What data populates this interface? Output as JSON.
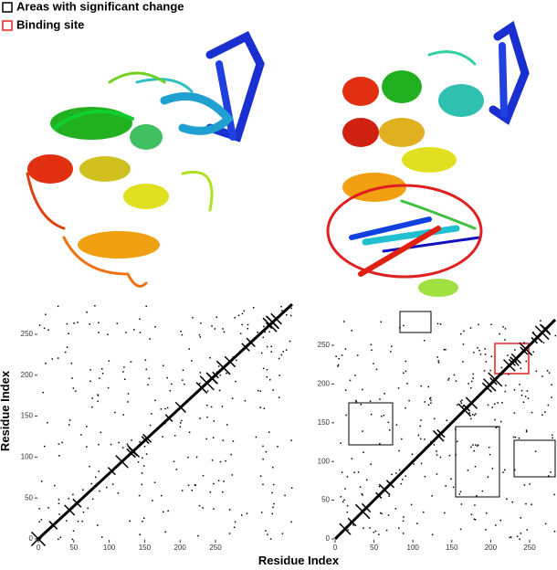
{
  "legend": [
    {
      "label": "Areas with significant change"
    },
    {
      "label": "Binding site"
    }
  ],
  "plots": [
    {
      "xticks": [
        0,
        50,
        100,
        150,
        200,
        250
      ],
      "yticks": [
        0,
        50,
        100,
        150,
        200,
        250
      ]
    },
    {
      "xticks": [
        0,
        50,
        100,
        150,
        200,
        250
      ],
      "yticks": [
        0,
        50,
        100,
        150,
        200,
        250
      ]
    }
  ],
  "x_label": "Residue Index",
  "y_label": "Residue Index"
}
